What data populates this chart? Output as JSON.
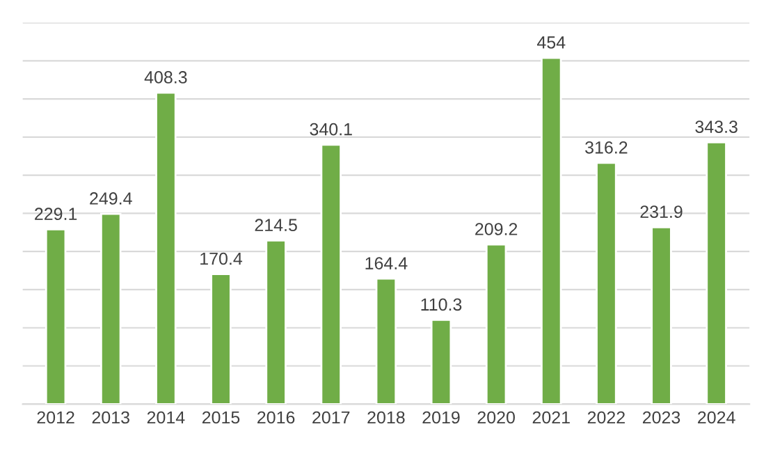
{
  "chart_data": {
    "type": "bar",
    "categories": [
      "2012",
      "2013",
      "2014",
      "2015",
      "2016",
      "2017",
      "2018",
      "2019",
      "2020",
      "2021",
      "2022",
      "2023",
      "2024"
    ],
    "series": [
      {
        "color": "#70ad47",
        "values": [
          229.1,
          249.4,
          408.3,
          170.4,
          214.5,
          340.1,
          164.4,
          110.3,
          209.2,
          454,
          316.2,
          231.9,
          343.3
        ]
      }
    ],
    "ylim": [
      0,
      500
    ],
    "yticks": [
      {
        "value": 0,
        "label": null
      },
      {
        "value": 50,
        "label": null
      },
      {
        "value": 100,
        "label": null
      },
      {
        "value": 150,
        "label": null
      },
      {
        "value": 200,
        "label": null
      },
      {
        "value": 250,
        "label": null
      },
      {
        "value": 300,
        "label": null
      },
      {
        "value": 350,
        "label": null
      },
      {
        "value": 400,
        "label": null
      },
      {
        "value": 450,
        "label": null
      },
      {
        "value": 500,
        "label": null
      }
    ],
    "grid": "y",
    "tick_labels": "x",
    "data_labels": true
  }
}
